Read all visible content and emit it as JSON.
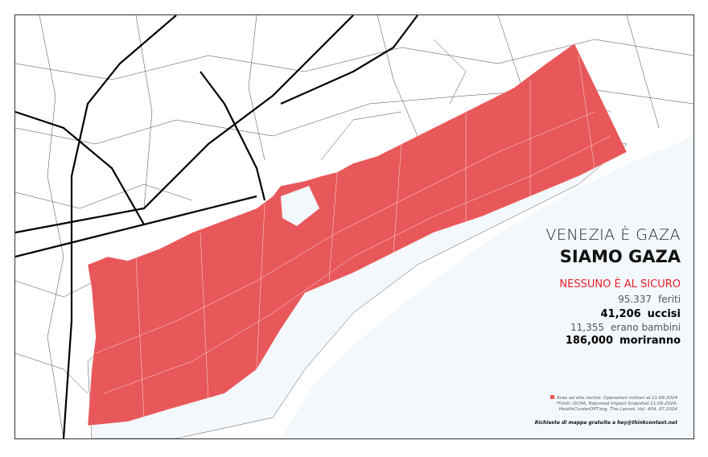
{
  "title": "VENEZIA È GAZA",
  "subtitle": "SIAMO GAZA",
  "tagline": "NESSUNO È AL SICURO",
  "stats": [
    {
      "value": "95.337",
      "label": "feriti"
    },
    {
      "value": "41,206",
      "label": "uccisi"
    },
    {
      "value": "11,355",
      "label": "erano bambini"
    },
    {
      "value": "186,000",
      "label": "moriranno"
    }
  ],
  "legend": {
    "item": "Aree ad alto rischio: Operazioni militari al 11.09.2024",
    "sources_1": "*Fonti: OCHA, Reported Impact Snapshot 11.09.2024,",
    "sources_2": "HealthClusterOPT.org, The Lancet, Vol. 404, 07.2024"
  },
  "contact": "Richieste di mappe gratuite a hey@thinkcontext.net",
  "colors": {
    "risk_area": "#e8585a",
    "sea": "#f3f8fc",
    "accent": "#e8202a",
    "roads": "#000000"
  }
}
